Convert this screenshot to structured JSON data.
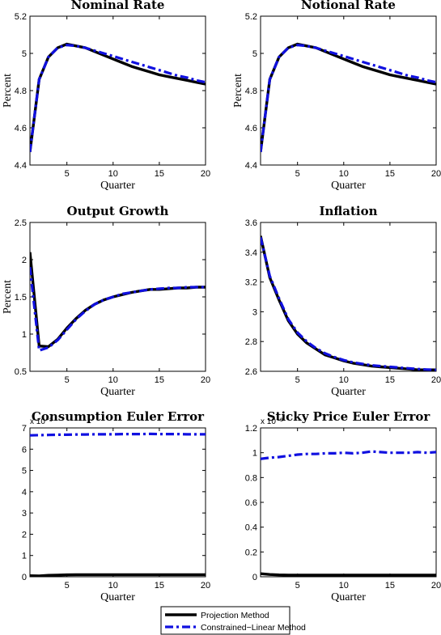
{
  "legend": {
    "entries": [
      {
        "label": "Projection Method",
        "color": "#000000",
        "style": "solid"
      },
      {
        "label": "Constrained−Linear Method",
        "color": "#1010e0",
        "style": "dashdot"
      }
    ],
    "placement": "bottom-center"
  },
  "colors": {
    "projection": "#000000",
    "linear": "#1010e0"
  },
  "chart_data": [
    {
      "type": "line",
      "title": "Nominal Rate",
      "xlabel": "Quarter",
      "ylabel": "Percent",
      "xlim": [
        1,
        20
      ],
      "ylim": [
        4.4,
        5.2
      ],
      "xticks": [
        5,
        10,
        15,
        20
      ],
      "yticks": [
        4.4,
        4.6,
        4.8,
        5,
        5.2
      ],
      "ytick_labels": [
        "4.4",
        "4.6",
        "4.8",
        "5",
        "5.2"
      ],
      "exponent_label": "",
      "x": [
        1,
        2,
        3,
        4,
        5,
        6,
        7,
        8,
        9,
        10,
        11,
        12,
        13,
        14,
        15,
        16,
        17,
        18,
        19,
        20
      ],
      "series": [
        {
          "key": "projection",
          "values": [
            4.47,
            4.86,
            4.98,
            5.03,
            5.05,
            5.04,
            5.03,
            5.01,
            4.99,
            4.97,
            4.95,
            4.93,
            4.915,
            4.9,
            4.885,
            4.875,
            4.865,
            4.855,
            4.845,
            4.835
          ]
        },
        {
          "key": "linear",
          "values": [
            4.47,
            4.86,
            4.98,
            5.03,
            5.045,
            5.04,
            5.03,
            5.015,
            5.0,
            4.985,
            4.97,
            4.955,
            4.94,
            4.925,
            4.91,
            4.895,
            4.88,
            4.87,
            4.855,
            4.845
          ]
        }
      ]
    },
    {
      "type": "line",
      "title": "Notional Rate",
      "xlabel": "Quarter",
      "ylabel": "Percent",
      "xlim": [
        1,
        20
      ],
      "ylim": [
        4.4,
        5.2
      ],
      "xticks": [
        5,
        10,
        15,
        20
      ],
      "yticks": [
        4.4,
        4.6,
        4.8,
        5,
        5.2
      ],
      "ytick_labels": [
        "4.4",
        "4.6",
        "4.8",
        "5",
        "5.2"
      ],
      "exponent_label": "",
      "x": [
        1,
        2,
        3,
        4,
        5,
        6,
        7,
        8,
        9,
        10,
        11,
        12,
        13,
        14,
        15,
        16,
        17,
        18,
        19,
        20
      ],
      "series": [
        {
          "key": "projection",
          "values": [
            4.47,
            4.86,
            4.98,
            5.03,
            5.05,
            5.04,
            5.03,
            5.01,
            4.99,
            4.97,
            4.95,
            4.93,
            4.915,
            4.9,
            4.885,
            4.875,
            4.865,
            4.855,
            4.845,
            4.835
          ]
        },
        {
          "key": "linear",
          "values": [
            4.47,
            4.86,
            4.98,
            5.03,
            5.045,
            5.04,
            5.03,
            5.015,
            5.0,
            4.985,
            4.97,
            4.955,
            4.94,
            4.925,
            4.91,
            4.895,
            4.88,
            4.87,
            4.855,
            4.845
          ]
        }
      ]
    },
    {
      "type": "line",
      "title": "Output Growth",
      "xlabel": "Quarter",
      "ylabel": "Percent",
      "xlim": [
        1,
        20
      ],
      "ylim": [
        0.5,
        2.5
      ],
      "xticks": [
        5,
        10,
        15,
        20
      ],
      "yticks": [
        0.5,
        1,
        1.5,
        2,
        2.5
      ],
      "ytick_labels": [
        "0.5",
        "1",
        "1.5",
        "2",
        "2.5"
      ],
      "exponent_label": "",
      "x": [
        1,
        2,
        3,
        4,
        5,
        6,
        7,
        8,
        9,
        10,
        11,
        12,
        13,
        14,
        15,
        16,
        17,
        18,
        19,
        20
      ],
      "series": [
        {
          "key": "projection",
          "values": [
            2.1,
            0.84,
            0.83,
            0.93,
            1.08,
            1.21,
            1.32,
            1.4,
            1.46,
            1.5,
            1.53,
            1.56,
            1.58,
            1.6,
            1.6,
            1.61,
            1.62,
            1.62,
            1.63,
            1.63
          ]
        },
        {
          "key": "linear",
          "values": [
            1.9,
            0.78,
            0.82,
            0.92,
            1.06,
            1.2,
            1.31,
            1.4,
            1.46,
            1.5,
            1.54,
            1.56,
            1.58,
            1.6,
            1.61,
            1.62,
            1.62,
            1.63,
            1.63,
            1.63
          ]
        }
      ]
    },
    {
      "type": "line",
      "title": "Inflation",
      "xlabel": "Quarter",
      "ylabel": "",
      "xlim": [
        1,
        20
      ],
      "ylim": [
        2.6,
        3.6
      ],
      "xticks": [
        5,
        10,
        15,
        20
      ],
      "yticks": [
        2.6,
        2.8,
        3,
        3.2,
        3.4,
        3.6
      ],
      "ytick_labels": [
        "2.6",
        "2.8",
        "3",
        "3.2",
        "3.4",
        "3.6"
      ],
      "exponent_label": "",
      "x": [
        1,
        2,
        3,
        4,
        5,
        6,
        7,
        8,
        9,
        10,
        11,
        12,
        13,
        14,
        15,
        16,
        17,
        18,
        19,
        20
      ],
      "series": [
        {
          "key": "projection",
          "values": [
            3.51,
            3.23,
            3.08,
            2.94,
            2.85,
            2.79,
            2.75,
            2.71,
            2.69,
            2.67,
            2.655,
            2.645,
            2.635,
            2.63,
            2.625,
            2.62,
            2.615,
            2.61,
            2.61,
            2.61
          ]
        },
        {
          "key": "linear",
          "values": [
            3.5,
            3.24,
            3.09,
            2.95,
            2.86,
            2.8,
            2.755,
            2.72,
            2.695,
            2.675,
            2.66,
            2.65,
            2.64,
            2.635,
            2.63,
            2.625,
            2.62,
            2.615,
            2.612,
            2.61
          ]
        }
      ]
    },
    {
      "type": "line",
      "title": "Consumption Euler Error",
      "xlabel": "Quarter",
      "ylabel": "",
      "xlim": [
        1,
        20
      ],
      "ylim": [
        0,
        7
      ],
      "xticks": [
        5,
        10,
        15,
        20
      ],
      "yticks": [
        0,
        1,
        2,
        3,
        4,
        5,
        6,
        7
      ],
      "ytick_labels": [
        "0",
        "1",
        "2",
        "3",
        "4",
        "5",
        "6",
        "7"
      ],
      "exponent_label": "x 10⁻³",
      "x": [
        1,
        2,
        3,
        4,
        5,
        6,
        7,
        8,
        9,
        10,
        11,
        12,
        13,
        14,
        15,
        16,
        17,
        18,
        19,
        20
      ],
      "series": [
        {
          "key": "projection",
          "values": [
            0.05,
            0.04,
            0.07,
            0.08,
            0.09,
            0.1,
            0.1,
            0.1,
            0.1,
            0.1,
            0.1,
            0.1,
            0.1,
            0.1,
            0.1,
            0.1,
            0.1,
            0.1,
            0.1,
            0.1
          ]
        },
        {
          "key": "linear",
          "values": [
            6.65,
            6.66,
            6.67,
            6.68,
            6.68,
            6.69,
            6.69,
            6.7,
            6.7,
            6.7,
            6.71,
            6.71,
            6.71,
            6.72,
            6.71,
            6.71,
            6.71,
            6.7,
            6.7,
            6.7
          ]
        }
      ]
    },
    {
      "type": "line",
      "title": "Sticky Price Euler Error",
      "xlabel": "Quarter",
      "ylabel": "",
      "xlim": [
        1,
        20
      ],
      "ylim": [
        0,
        1.2
      ],
      "xticks": [
        5,
        10,
        15,
        20
      ],
      "yticks": [
        0,
        0.2,
        0.4,
        0.6,
        0.8,
        1,
        1.2
      ],
      "ytick_labels": [
        "0",
        "0.2",
        "0.4",
        "0.6",
        "0.8",
        "1",
        "1.2"
      ],
      "exponent_label": "x 10⁻³",
      "x": [
        1,
        2,
        3,
        4,
        5,
        6,
        7,
        8,
        9,
        10,
        11,
        12,
        13,
        14,
        15,
        16,
        17,
        18,
        19,
        20
      ],
      "series": [
        {
          "key": "projection",
          "values": [
            0.025,
            0.018,
            0.015,
            0.014,
            0.014,
            0.014,
            0.014,
            0.014,
            0.014,
            0.014,
            0.014,
            0.014,
            0.014,
            0.014,
            0.014,
            0.014,
            0.014,
            0.014,
            0.014,
            0.013
          ]
        },
        {
          "key": "linear",
          "values": [
            0.95,
            0.96,
            0.965,
            0.975,
            0.985,
            0.99,
            0.99,
            0.995,
            0.995,
            1.0,
            0.995,
            1.0,
            1.01,
            1.005,
            1.0,
            1.0,
            1.0,
            1.005,
            1.0,
            1.005
          ]
        }
      ]
    }
  ]
}
